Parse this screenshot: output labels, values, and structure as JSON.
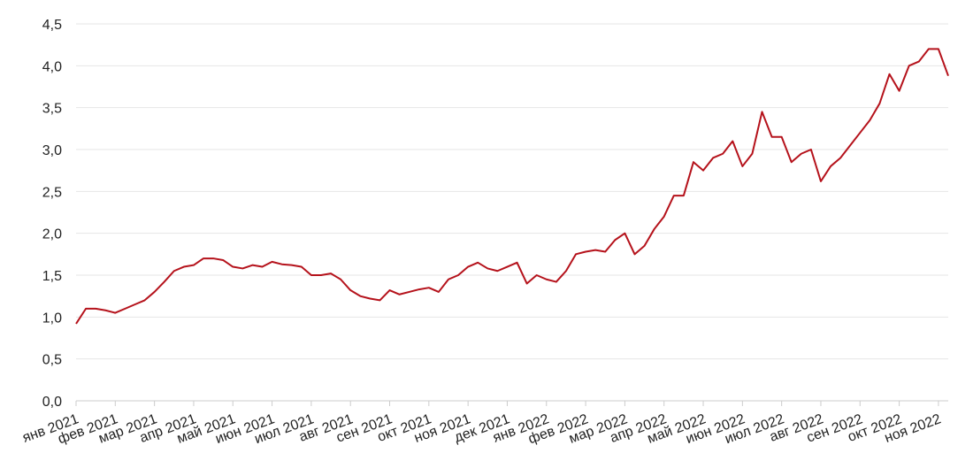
{
  "chart_data": {
    "type": "line",
    "categories": [
      "янв 2021",
      null,
      null,
      null,
      "фев 2021",
      null,
      null,
      null,
      "мар 2021",
      null,
      null,
      null,
      "апр 2021",
      null,
      null,
      null,
      "май 2021",
      null,
      null,
      null,
      "июн 2021",
      null,
      null,
      null,
      "июл 2021",
      null,
      null,
      null,
      "авг 2021",
      null,
      null,
      null,
      "сен 2021",
      null,
      null,
      null,
      "окт 2021",
      null,
      null,
      null,
      "ноя 2021",
      null,
      null,
      null,
      "дек 2021",
      null,
      null,
      null,
      "янв 2022",
      null,
      null,
      null,
      "фев 2022",
      null,
      null,
      null,
      "мар 2022",
      null,
      null,
      null,
      "апр 2022",
      null,
      null,
      null,
      "май 2022",
      null,
      null,
      null,
      "июн 2022",
      null,
      null,
      null,
      "июл 2022",
      null,
      null,
      null,
      "авг 2022",
      null,
      null,
      null,
      "сен 2022",
      null,
      null,
      null,
      "окт 2022",
      null,
      null,
      null,
      "ноя 2022",
      null
    ],
    "series": [
      {
        "color": "#b5121b",
        "values": [
          0.92,
          1.1,
          1.1,
          1.08,
          1.05,
          1.1,
          1.15,
          1.2,
          1.3,
          1.42,
          1.55,
          1.6,
          1.62,
          1.7,
          1.7,
          1.68,
          1.6,
          1.58,
          1.62,
          1.6,
          1.66,
          1.63,
          1.62,
          1.6,
          1.5,
          1.5,
          1.52,
          1.45,
          1.32,
          1.25,
          1.22,
          1.2,
          1.32,
          1.27,
          1.3,
          1.33,
          1.35,
          1.3,
          1.45,
          1.5,
          1.6,
          1.65,
          1.58,
          1.55,
          1.6,
          1.65,
          1.4,
          1.5,
          1.45,
          1.42,
          1.55,
          1.75,
          1.78,
          1.8,
          1.78,
          1.92,
          2.0,
          1.75,
          1.85,
          2.05,
          2.2,
          2.45,
          2.45,
          2.85,
          2.75,
          2.9,
          2.95,
          3.1,
          2.8,
          2.95,
          3.45,
          3.15,
          3.15,
          2.85,
          2.95,
          3.0,
          2.62,
          2.8,
          2.9,
          3.05,
          3.2,
          3.35,
          3.55,
          3.9,
          3.7,
          4.0,
          4.05,
          4.2,
          4.2,
          3.88
        ]
      }
    ],
    "ylim": [
      0,
      4.5
    ],
    "yticks": [
      {
        "value": 0,
        "label": "0,0"
      },
      {
        "value": 0.5,
        "label": "0,5"
      },
      {
        "value": 1,
        "label": "1,0"
      },
      {
        "value": 1.5,
        "label": "1,5"
      },
      {
        "value": 2,
        "label": "2,0"
      },
      {
        "value": 2.5,
        "label": "2,5"
      },
      {
        "value": 3,
        "label": "3,0"
      },
      {
        "value": 3.5,
        "label": "3,5"
      },
      {
        "value": 4,
        "label": "4,0"
      },
      {
        "value": 4.5,
        "label": "4,5"
      }
    ],
    "grid": true
  }
}
